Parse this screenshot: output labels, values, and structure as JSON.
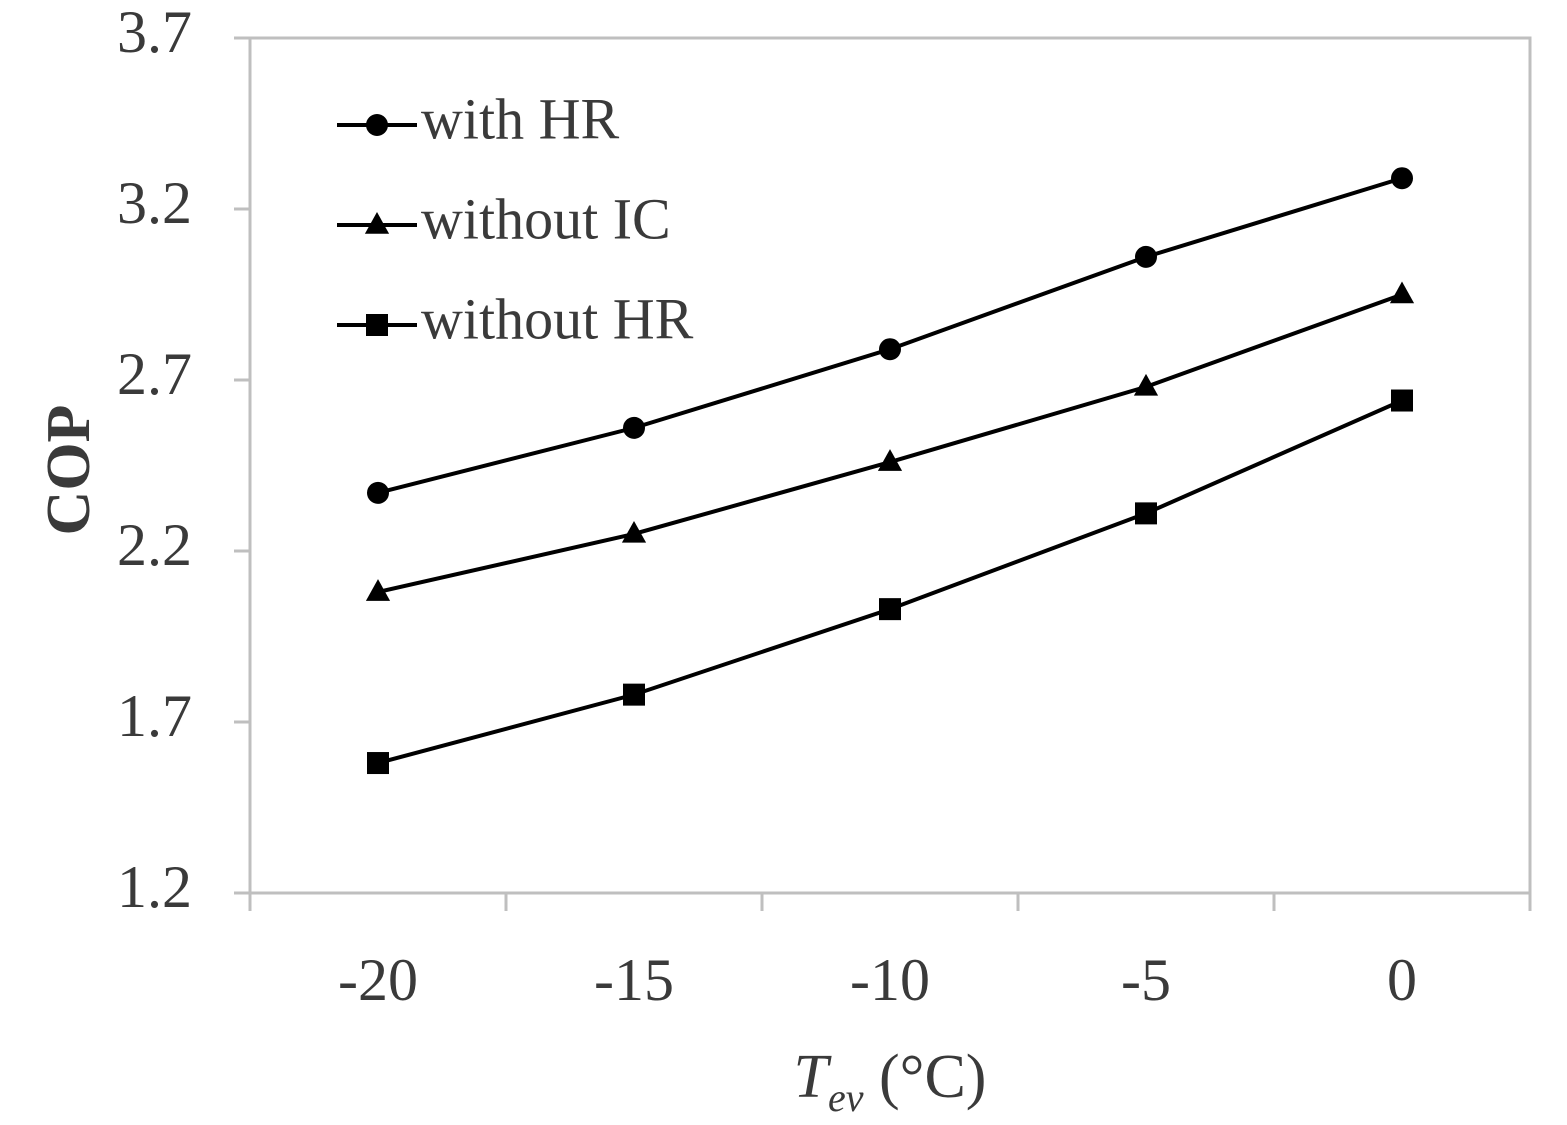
{
  "chart_data": {
    "type": "line",
    "title": "",
    "xlabel": {
      "main": "T",
      "subscript": "ev",
      "unit": " (°C)"
    },
    "ylabel": "COP",
    "x": [
      -20,
      -15,
      -10,
      -5,
      0
    ],
    "x_tick_labels": [
      "-20",
      "-15",
      "-10",
      "-5",
      "0"
    ],
    "y_tick_labels": [
      "1.2",
      "1.7",
      "2.2",
      "2.7",
      "3.2",
      "3.7"
    ],
    "ylim": [
      1.2,
      3.7
    ],
    "x_range": [
      -22.5,
      2.5
    ],
    "grid": false,
    "legend_position": "top-left",
    "series": [
      {
        "name": "with HR",
        "marker": "circle",
        "values": [
          2.37,
          2.56,
          2.79,
          3.06,
          3.29
        ]
      },
      {
        "name": "without IC",
        "marker": "triangle",
        "values": [
          2.08,
          2.25,
          2.46,
          2.68,
          2.95
        ]
      },
      {
        "name": "without HR",
        "marker": "square",
        "values": [
          1.58,
          1.78,
          2.03,
          2.31,
          2.64
        ]
      }
    ],
    "colors": {
      "line": "#000000",
      "axis": "#bfbfbf",
      "text": "#3a3a3a"
    }
  }
}
